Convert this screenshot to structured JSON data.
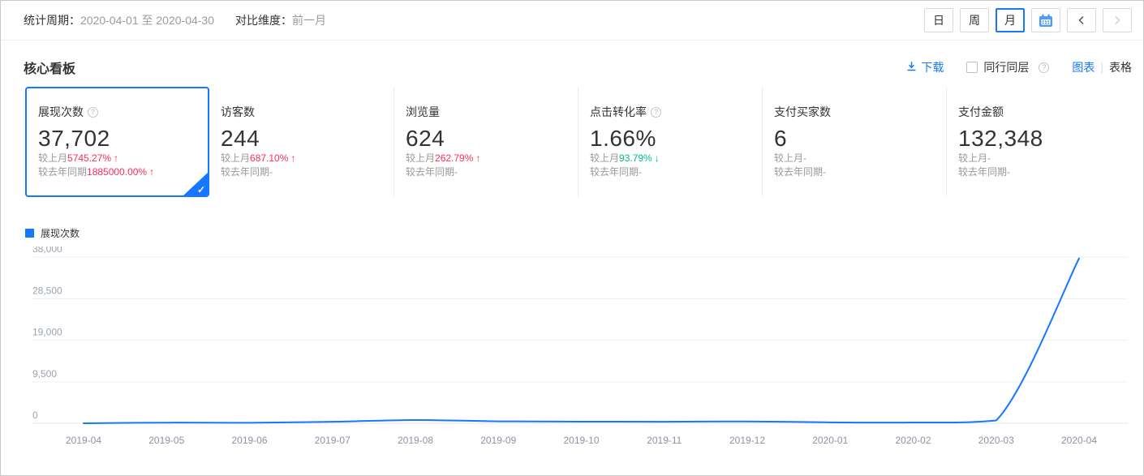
{
  "topbar": {
    "period_label": "统计周期：",
    "period_value": "2020-04-01 至 2020-04-30",
    "compare_label": "对比维度：",
    "compare_value": "前一月",
    "granularity": {
      "day": "日",
      "week": "周",
      "month": "月",
      "selected": "月"
    }
  },
  "panel": {
    "title": "核心看板",
    "download_label": "下载",
    "peer_checkbox_label": "同行同层",
    "peer_checked": false,
    "view_chart_label": "图表",
    "view_table_label": "表格",
    "active_view": "图表"
  },
  "icons": {
    "up": "↑",
    "down": "↓",
    "check": "✓",
    "question": "?",
    "prev": "‹",
    "next": "›"
  },
  "colors": {
    "accent": "#1677ff",
    "up_red": "#fe2c55",
    "down_green": "#00bf8f",
    "line": "#1677ff",
    "grid": "#eef2f8"
  },
  "metrics": [
    {
      "label": "展现次数",
      "value": "37,702",
      "selected": true,
      "mom": {
        "label": "较上月",
        "value": "5745.27%",
        "trend": "up"
      },
      "yoy": {
        "label": "较去年同期",
        "value": "1885000.00%",
        "trend": "up"
      }
    },
    {
      "label": "访客数",
      "value": "244",
      "mom": {
        "label": "较上月",
        "value": "687.10%",
        "trend": "up"
      },
      "yoy": {
        "label": "较去年同期",
        "value": "-",
        "trend": null
      }
    },
    {
      "label": "浏览量",
      "value": "624",
      "mom": {
        "label": "较上月",
        "value": "262.79%",
        "trend": "up"
      },
      "yoy": {
        "label": "较去年同期",
        "value": "-",
        "trend": null
      }
    },
    {
      "label": "点击转化率",
      "value": "1.66%",
      "mom": {
        "label": "较上月",
        "value": "93.79%",
        "trend": "down"
      },
      "yoy": {
        "label": "较去年同期",
        "value": "-",
        "trend": null
      }
    },
    {
      "label": "支付买家数",
      "value": "6",
      "mom": {
        "label": "较上月",
        "value": "-",
        "trend": null
      },
      "yoy": {
        "label": "较去年同期",
        "value": "-",
        "trend": null
      }
    },
    {
      "label": "支付金额",
      "value": "132,348",
      "mom": {
        "label": "较上月",
        "value": "-",
        "trend": null
      },
      "yoy": {
        "label": "较去年同期",
        "value": "-",
        "trend": null
      }
    }
  ],
  "chart_data": {
    "type": "line",
    "title": "展现次数",
    "legend": [
      "展现次数"
    ],
    "legend_position": "top-left",
    "grid": true,
    "x": [
      "2019-04",
      "2019-05",
      "2019-06",
      "2019-07",
      "2019-08",
      "2019-09",
      "2019-10",
      "2019-11",
      "2019-12",
      "2020-01",
      "2020-02",
      "2020-03",
      "2020-04"
    ],
    "series": [
      {
        "name": "展现次数",
        "values": [
          2,
          150,
          120,
          350,
          750,
          450,
          380,
          350,
          420,
          220,
          180,
          645,
          37702
        ]
      }
    ],
    "ylim": [
      0,
      38000
    ],
    "yticks": [
      0,
      9500,
      19000,
      28500,
      38000
    ],
    "line_color": "#1677ff"
  }
}
